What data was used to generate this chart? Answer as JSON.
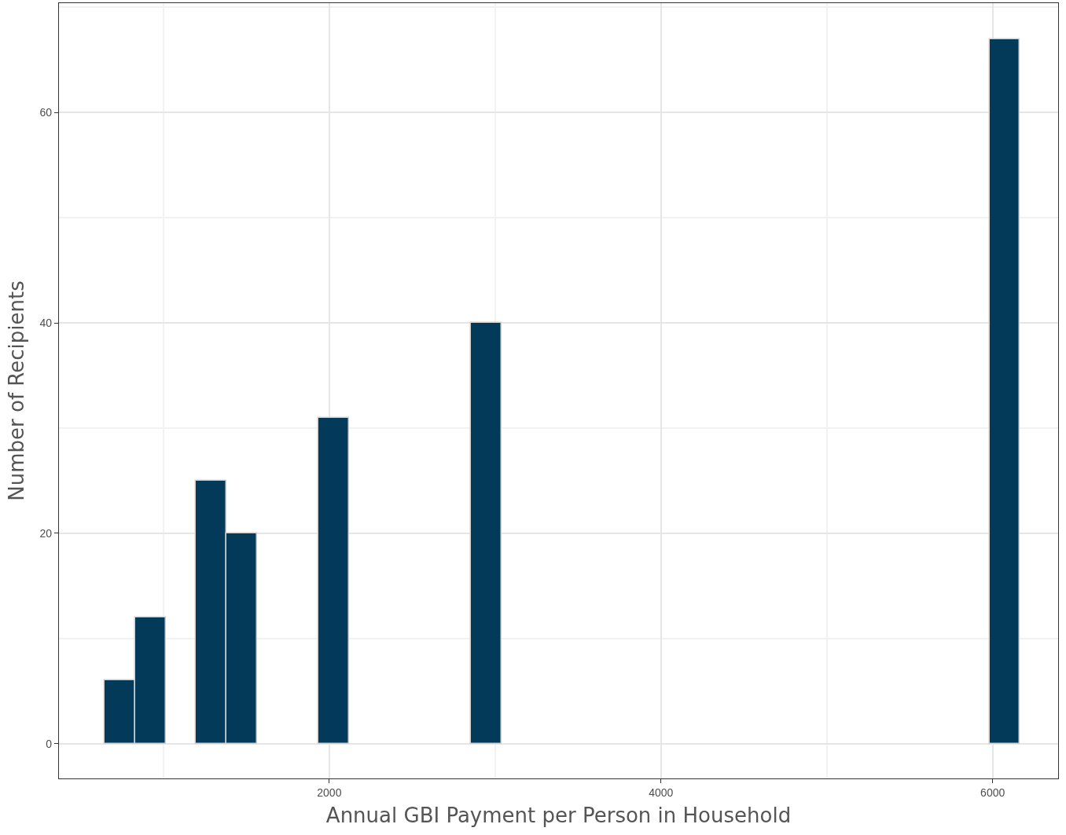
{
  "chart_data": {
    "type": "histogram",
    "xlabel": "Annual GBI Payment per Person in Household",
    "ylabel": "Number of Recipients",
    "bins": [
      645,
      829,
      1013,
      1197,
      1381,
      1565,
      1749,
      1933,
      2117,
      2301,
      2485,
      2669,
      2853,
      3037,
      3221,
      3405,
      3589,
      3773,
      3957,
      4141,
      4325,
      4509,
      4693,
      4877,
      5061,
      5245,
      5429,
      5613,
      5797,
      5981,
      6165
    ],
    "values": [
      6,
      12,
      0,
      25,
      20,
      0,
      0,
      31,
      0,
      0,
      0,
      0,
      40,
      0,
      0,
      0,
      0,
      0,
      0,
      0,
      0,
      0,
      0,
      0,
      0,
      0,
      0,
      0,
      0,
      67
    ],
    "color": "#033a5a",
    "xlim": [
      370,
      6395
    ],
    "xticks": [
      2000,
      4000,
      6000
    ],
    "ylim": [
      -3.3,
      70.4
    ],
    "yticks": [
      0,
      20,
      40,
      60
    ],
    "grid": true
  }
}
